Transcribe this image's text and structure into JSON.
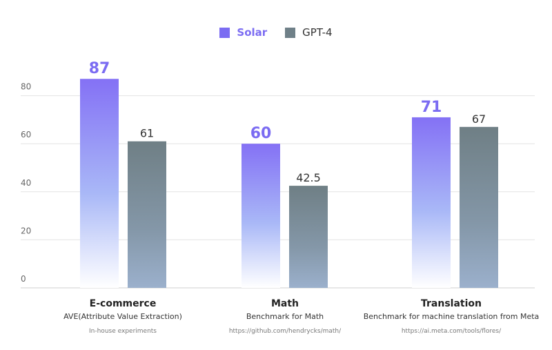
{
  "chart_data": {
    "type": "bar",
    "categories": [
      "E-commerce",
      "Math",
      "Translation"
    ],
    "category_subtitles": [
      "AVE(Attribute Value Extraction)",
      "Benchmark for Math",
      "Benchmark for machine translation from Meta"
    ],
    "category_notes": [
      "In-house experiments",
      "https://github.com/hendrycks/math/",
      "https://ai.meta.com/tools/flores/"
    ],
    "series": [
      {
        "name": "Solar",
        "values": [
          87,
          60,
          71
        ],
        "labels": [
          "87",
          "60",
          "71"
        ],
        "color": "#7b6cf2"
      },
      {
        "name": "GPT-4",
        "values": [
          61,
          42.5,
          67
        ],
        "labels": [
          "61",
          "42.5",
          "67"
        ],
        "color": "#6f8088"
      }
    ],
    "yticks": [
      "0",
      "20",
      "40",
      "60",
      "80"
    ],
    "ylim": [
      0,
      100
    ],
    "grid": true,
    "legend_position": "top-center"
  }
}
